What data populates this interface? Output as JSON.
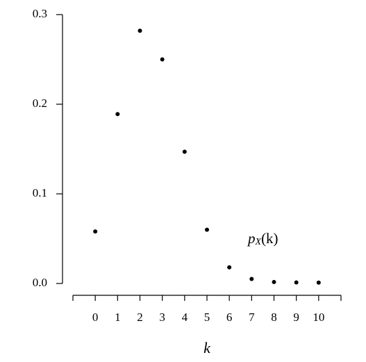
{
  "chart_data": {
    "type": "scatter",
    "x": [
      0,
      1,
      2,
      3,
      4,
      5,
      6,
      7,
      8,
      9,
      10
    ],
    "values": [
      0.058,
      0.189,
      0.282,
      0.25,
      0.147,
      0.06,
      0.018,
      0.005,
      0.0016,
      0.0012,
      0.001
    ],
    "color": "#000000",
    "xlim": [
      -1,
      11
    ],
    "xticks": [
      0,
      1,
      2,
      3,
      4,
      5,
      6,
      7,
      8,
      9,
      10
    ],
    "ylim": [
      0,
      0.3
    ],
    "yticks": [
      {
        "value": 0,
        "label": "0.0"
      },
      0.1,
      0.2,
      0.3
    ],
    "xlabel": "k",
    "annotation": [
      "p",
      "X",
      "(k)"
    ]
  }
}
